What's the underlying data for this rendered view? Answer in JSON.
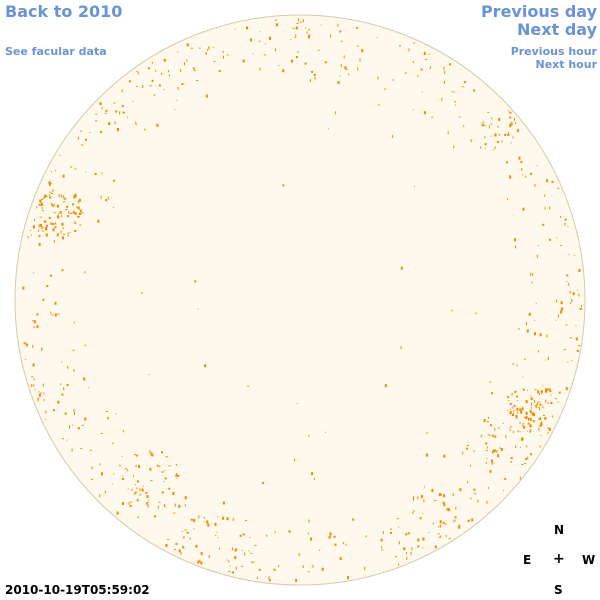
{
  "nav": {
    "back": "Back to 2010",
    "facular": "See facular data",
    "previous_day": "Previous day",
    "next_day": "Next day",
    "previous_hour": "Previous hour",
    "next_hour": "Next hour"
  },
  "timestamp": "2010-10-19T05:59:02",
  "compass": {
    "north": "N",
    "east": "E",
    "center": "+",
    "west": "W",
    "south": "S"
  },
  "colors": {
    "disk_fill": "#fef9ec",
    "disk_edge": "#d8c9a8",
    "link": "#6a93d4",
    "feature": "#f08a00"
  },
  "icons": {
    "sun_disk": "solar-disk-icon",
    "center_marker": "plus-icon"
  }
}
